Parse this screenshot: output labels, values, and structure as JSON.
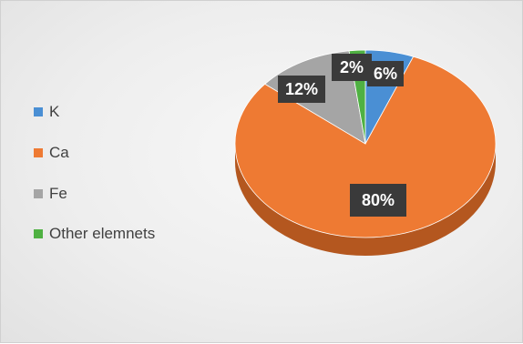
{
  "chart_data": {
    "type": "pie",
    "style": "3d",
    "title": "",
    "categories": [
      "K",
      "Ca",
      "Fe",
      "Other elemnets"
    ],
    "values": [
      6,
      80,
      12,
      2
    ],
    "data_labels": [
      "6%",
      "80%",
      "12%",
      "2%"
    ],
    "colors": [
      "#4a8fd4",
      "#ee7a33",
      "#a5a5a5",
      "#4fb142"
    ],
    "side_colors": [
      "#2f6aa6",
      "#b4571f",
      "#7a7a7a",
      "#357a2c"
    ],
    "legend_position": "left"
  }
}
